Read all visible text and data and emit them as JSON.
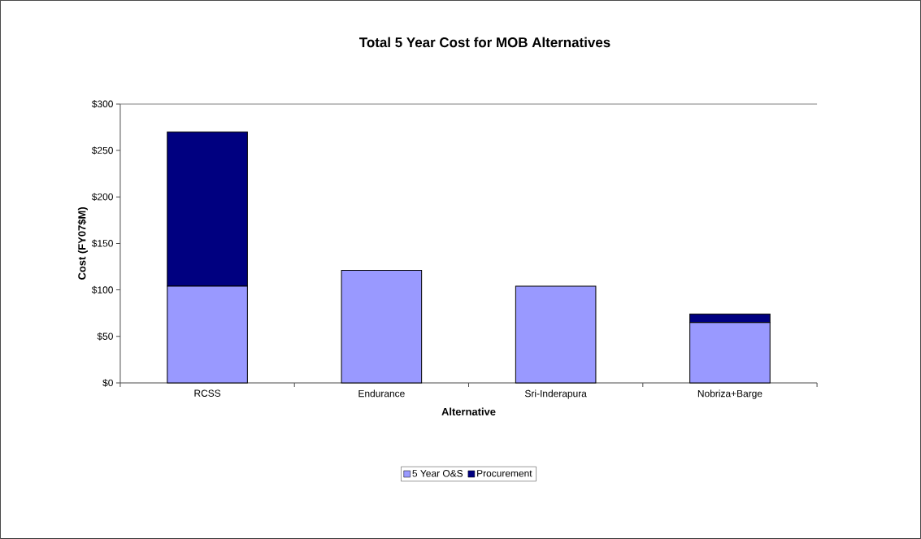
{
  "chart_data": {
    "type": "bar",
    "title": "Total 5 Year Cost for MOB Alternatives",
    "xlabel": "Alternative",
    "ylabel": "Cost (FY07$M)",
    "categories": [
      "RCSS",
      "Endurance",
      "Sri-Inderapura",
      "Nobriza+Barge"
    ],
    "stacked": true,
    "series": [
      {
        "name": "5 Year O&S",
        "color": "#9999ff",
        "values": [
          104,
          121,
          104,
          65
        ]
      },
      {
        "name": "Procurement",
        "color": "#000080",
        "values": [
          166,
          0,
          0,
          9
        ]
      }
    ],
    "ylim": [
      0,
      300
    ],
    "yticks": [
      {
        "value": 0,
        "label": "$0"
      },
      {
        "value": 50,
        "label": "$50"
      },
      {
        "value": 100,
        "label": "$100"
      },
      {
        "value": 150,
        "label": "$150"
      },
      {
        "value": 200,
        "label": "$200"
      },
      {
        "value": 250,
        "label": "$250"
      },
      {
        "value": 300,
        "label": "$300"
      }
    ],
    "grid": false,
    "legend": "bottom"
  }
}
